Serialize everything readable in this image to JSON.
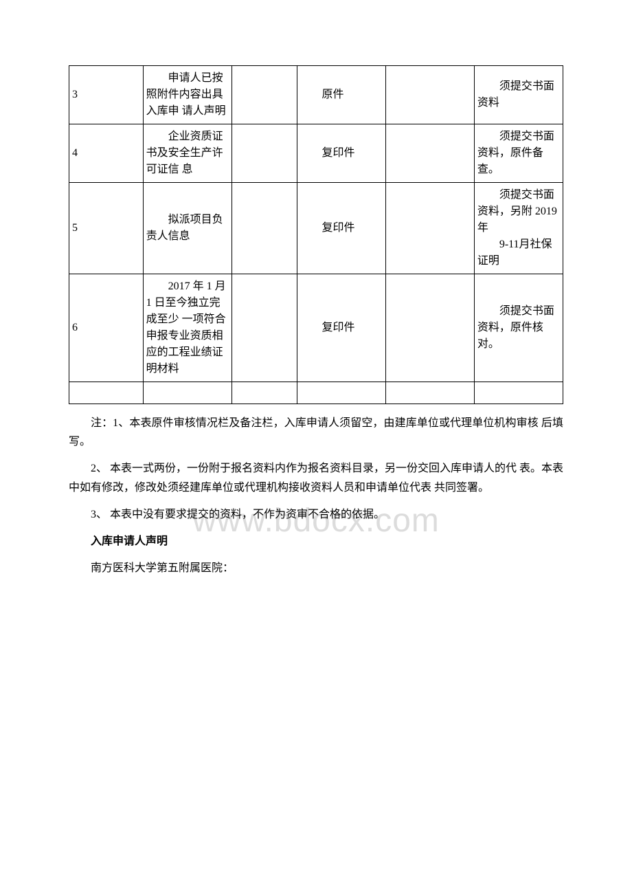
{
  "watermark": "www.bdocx.com",
  "table": {
    "rows": [
      {
        "num": "3",
        "name": "　　申请人已按照附件内容出具入库申 请人声明",
        "blank1": "",
        "format": "　　原件",
        "blank2": "",
        "note": "　　须提交书面资料"
      },
      {
        "num": "4",
        "name": "　　企业资质证书及安全生产许可证信 息",
        "blank1": "",
        "format": "　　复印件",
        "blank2": "",
        "note": "　　须提交书面资料，原件备查。"
      },
      {
        "num": "5",
        "name": "　　拟派项目负责人信息",
        "blank1": "",
        "format": "　　复印件",
        "blank2": "",
        "note": "　　须提交书面资料，另附 2019 年\n　　9-11月社保证明"
      },
      {
        "num": "6",
        "name": "　　2017 年 1 月 1 日至今独立完成至少 一项符合申报专业资质相应的工程业绩证明材料",
        "blank1": "",
        "format": "　　复印件",
        "blank2": "",
        "note": "　　须提交书面资料，原件核对。"
      }
    ]
  },
  "notes": {
    "n1": "注：1、本表原件审核情况栏及备注栏，入库申请人须留空，由建库单位或代理单位机构审核 后填写。",
    "n2": "2、 本表一式两份，一份附于报名资料内作为报名资料目录，另一份交回入库申请人的代 表。本表中如有修改，修改处须经建库单位或代理机构接收资料人员和申请单位代表 共同签署。",
    "n3": "3、 本表中没有要求提交的资料，不作为资审不合格的依据。"
  },
  "heading": "入库申请人声明",
  "addressee": "南方医科大学第五附属医院："
}
